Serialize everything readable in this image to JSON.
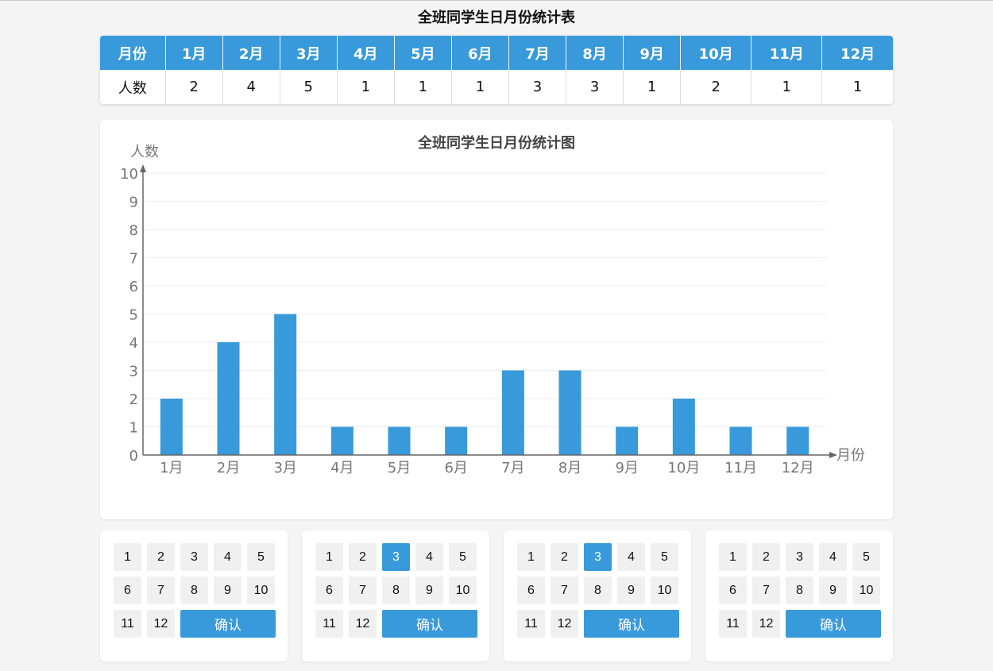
{
  "table": {
    "title": "全班同学生日月份统计表",
    "header_label": "月份",
    "row_label": "人数",
    "months": [
      "1月",
      "2月",
      "3月",
      "4月",
      "5月",
      "6月",
      "7月",
      "8月",
      "9月",
      "10月",
      "11月",
      "12月"
    ],
    "counts": [
      "2",
      "4",
      "5",
      "1",
      "1",
      "1",
      "3",
      "3",
      "1",
      "2",
      "1",
      "1"
    ]
  },
  "chart_data": {
    "type": "bar",
    "title": "全班同学生日月份统计图",
    "xlabel": "月份",
    "ylabel": "人数",
    "categories": [
      "1月",
      "2月",
      "3月",
      "4月",
      "5月",
      "6月",
      "7月",
      "8月",
      "9月",
      "10月",
      "11月",
      "12月"
    ],
    "values": [
      2,
      4,
      5,
      1,
      1,
      1,
      3,
      3,
      1,
      2,
      1,
      1
    ],
    "ylim": [
      0,
      10
    ],
    "yticks": [
      "0",
      "1",
      "2",
      "3",
      "4",
      "5",
      "6",
      "7",
      "8",
      "9",
      "10"
    ],
    "grid": true,
    "bar_color": "#3899db"
  },
  "pads": [
    {
      "keys": [
        "1",
        "2",
        "3",
        "4",
        "5",
        "6",
        "7",
        "8",
        "9",
        "10",
        "11",
        "12"
      ],
      "selected": null,
      "confirm": "确认"
    },
    {
      "keys": [
        "1",
        "2",
        "3",
        "4",
        "5",
        "6",
        "7",
        "8",
        "9",
        "10",
        "11",
        "12"
      ],
      "selected": "3",
      "confirm": "确认"
    },
    {
      "keys": [
        "1",
        "2",
        "3",
        "4",
        "5",
        "6",
        "7",
        "8",
        "9",
        "10",
        "11",
        "12"
      ],
      "selected": "3",
      "confirm": "确认"
    },
    {
      "keys": [
        "1",
        "2",
        "3",
        "4",
        "5",
        "6",
        "7",
        "8",
        "9",
        "10",
        "11",
        "12"
      ],
      "selected": null,
      "confirm": "确认"
    }
  ]
}
